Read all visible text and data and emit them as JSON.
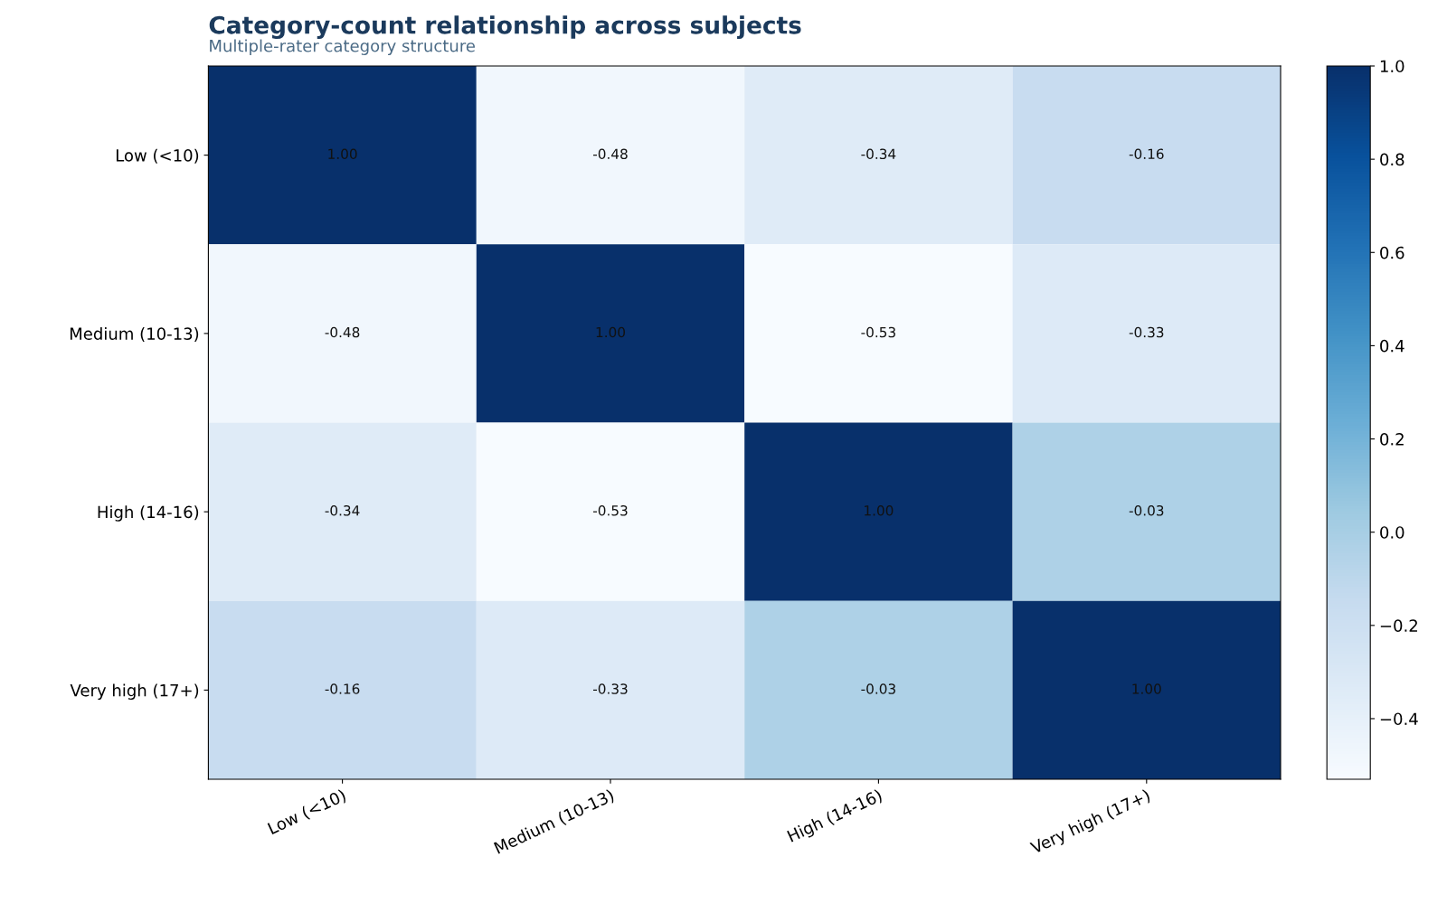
{
  "chart_data": {
    "type": "heatmap",
    "title": "Category-count relationship across subjects",
    "subtitle": "Multiple-rater category structure",
    "categories": [
      "Low (<10)",
      "Medium (10-13)",
      "High (14-16)",
      "Very high (17+)"
    ],
    "y_categories": [
      "Low (<10)",
      "Medium (10-13)",
      "High (14-16)",
      "Very high (17+)"
    ],
    "cells": [
      [
        1.0,
        -0.48,
        -0.34,
        -0.16
      ],
      [
        -0.48,
        1.0,
        -0.53,
        -0.33
      ],
      [
        -0.34,
        -0.53,
        1.0,
        -0.03
      ],
      [
        -0.16,
        -0.33,
        -0.03,
        1.0
      ]
    ],
    "cell_labels": [
      [
        "1.00",
        "-0.48",
        "-0.34",
        "-0.16"
      ],
      [
        "-0.48",
        "1.00",
        "-0.53",
        "-0.33"
      ],
      [
        "-0.34",
        "-0.53",
        "1.00",
        "-0.03"
      ],
      [
        "-0.16",
        "-0.33",
        "-0.03",
        "1.00"
      ]
    ],
    "clim": [
      -0.53,
      1.0
    ],
    "cticks": [
      {
        "value": -0.4,
        "label": "−0.4"
      },
      {
        "value": -0.2,
        "label": "−0.2"
      },
      {
        "value": 0.0,
        "label": "0.0"
      },
      {
        "value": 0.2,
        "label": "0.2"
      },
      {
        "value": 0.4,
        "label": "0.4"
      },
      {
        "value": 0.6,
        "label": "0.6"
      },
      {
        "value": 0.8,
        "label": "0.8"
      },
      {
        "value": 1.0,
        "label": "1.0"
      }
    ]
  }
}
